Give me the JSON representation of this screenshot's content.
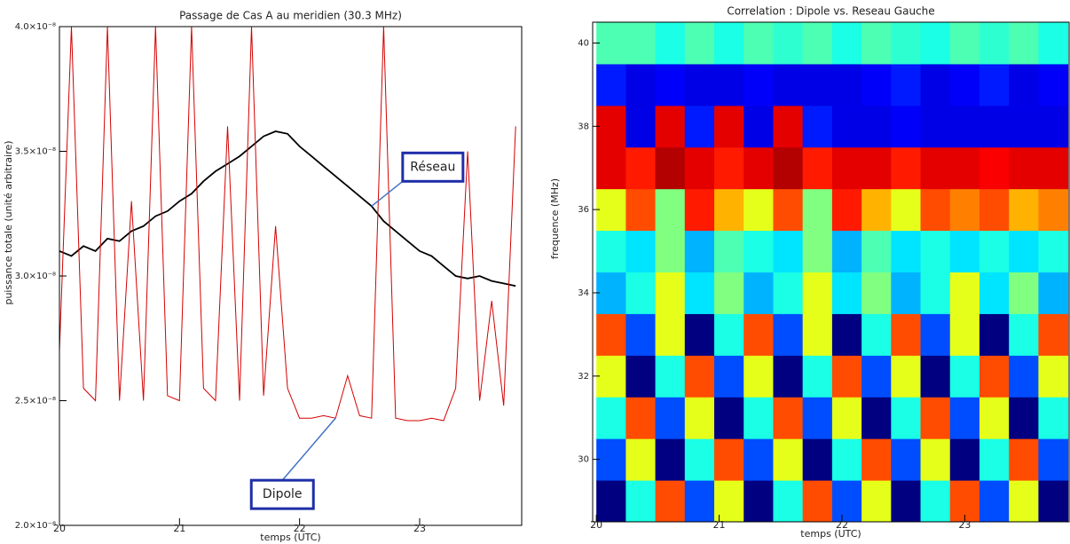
{
  "chart_data": [
    {
      "type": "line",
      "title": "Passage de Cas A au meridien (30.3 MHz)",
      "x_label": "temps (UTC)",
      "y_label": "puissance totale (unité arbitraire)",
      "legend": "callout",
      "x": [
        20.0,
        20.1,
        20.2,
        20.3,
        20.4,
        20.5,
        20.6,
        20.7,
        20.8,
        20.9,
        21.0,
        21.1,
        21.2,
        21.3,
        21.4,
        21.5,
        21.6,
        21.7,
        21.8,
        21.9,
        22.0,
        22.1,
        22.2,
        22.3,
        22.4,
        22.5,
        22.6,
        22.7,
        22.8,
        22.9,
        23.0,
        23.1,
        23.2,
        23.3,
        23.4,
        23.5,
        23.6,
        23.7,
        23.8
      ],
      "series": [
        {
          "name": "Réseau",
          "color": "#000000",
          "values": [
            3.1e-08,
            3.08e-08,
            3.12e-08,
            3.1e-08,
            3.15e-08,
            3.14e-08,
            3.18e-08,
            3.2e-08,
            3.24e-08,
            3.26e-08,
            3.3e-08,
            3.33e-08,
            3.38e-08,
            3.42e-08,
            3.45e-08,
            3.48e-08,
            3.52e-08,
            3.56e-08,
            3.58e-08,
            3.57e-08,
            3.52e-08,
            3.48e-08,
            3.44e-08,
            3.4e-08,
            3.36e-08,
            3.32e-08,
            3.28e-08,
            3.22e-08,
            3.18e-08,
            3.14e-08,
            3.1e-08,
            3.08e-08,
            3.04e-08,
            3e-08,
            2.99e-08,
            3e-08,
            2.98e-08,
            2.97e-08,
            2.96e-08
          ]
        },
        {
          "name": "Dipole",
          "color": "#d40000",
          "values": [
            2.7e-08,
            4e-08,
            2.55e-08,
            2.5e-08,
            4e-08,
            2.5e-08,
            3.3e-08,
            2.5e-08,
            4e-08,
            2.52e-08,
            2.5e-08,
            4e-08,
            2.55e-08,
            2.5e-08,
            3.6e-08,
            2.5e-08,
            4e-08,
            2.52e-08,
            3.2e-08,
            2.55e-08,
            2.43e-08,
            2.43e-08,
            2.44e-08,
            2.43e-08,
            2.6e-08,
            2.44e-08,
            2.43e-08,
            4e-08,
            2.43e-08,
            2.42e-08,
            2.42e-08,
            2.43e-08,
            2.42e-08,
            2.55e-08,
            3.5e-08,
            2.5e-08,
            2.9e-08,
            2.48e-08,
            3.6e-08
          ]
        }
      ],
      "xlim": [
        20,
        23.85
      ],
      "xticks": [
        20,
        21,
        22,
        23
      ],
      "ylim": [
        2e-08,
        4e-08
      ],
      "yticks": [
        {
          "value": 2e-08,
          "label": "2.0×10⁻⁸"
        },
        {
          "value": 2.5e-08,
          "label": "2.5×10⁻⁸"
        },
        {
          "value": 3e-08,
          "label": "3.0×10⁻⁸"
        },
        {
          "value": 3.5e-08,
          "label": "3.5×10⁻⁸"
        },
        {
          "value": 4e-08,
          "label": "4.0×10⁻⁸"
        }
      ]
    },
    {
      "type": "heatmap",
      "title": "Correlation : Dipole vs. Reseau Gauche",
      "x_label": "temps (UTC)",
      "y_label": "frequence (MHz)",
      "colormap": "jet",
      "x": [
        20.12,
        20.36,
        20.6,
        20.84,
        21.08,
        21.32,
        21.56,
        21.8,
        22.04,
        22.28,
        22.52,
        22.76,
        23.0,
        23.24,
        23.48,
        23.72
      ],
      "y": [
        29,
        30,
        31,
        32,
        33,
        34,
        35,
        36,
        37,
        38,
        39,
        40
      ],
      "values": [
        [
          0,
          0.4,
          0.8,
          0.2,
          0.6,
          0,
          0.4,
          0.8,
          0.2,
          0.6,
          0,
          0.4,
          0.8,
          0.2,
          0.6,
          0
        ],
        [
          0.2,
          0.6,
          0,
          0.4,
          0.8,
          0.2,
          0.6,
          0,
          0.4,
          0.8,
          0.2,
          0.6,
          0,
          0.4,
          0.8,
          0.2
        ],
        [
          0.4,
          0.8,
          0.2,
          0.6,
          0,
          0.4,
          0.8,
          0.2,
          0.6,
          0,
          0.4,
          0.8,
          0.2,
          0.6,
          0,
          0.4
        ],
        [
          0.6,
          0,
          0.4,
          0.8,
          0.2,
          0.6,
          0,
          0.4,
          0.8,
          0.2,
          0.6,
          0,
          0.4,
          0.8,
          0.2,
          0.6
        ],
        [
          0.8,
          0.2,
          0.6,
          0,
          0.4,
          0.8,
          0.2,
          0.6,
          0,
          0.4,
          0.8,
          0.2,
          0.6,
          0,
          0.4,
          0.8
        ],
        [
          0.3,
          0.4,
          0.6,
          0.35,
          0.5,
          0.3,
          0.4,
          0.6,
          0.35,
          0.5,
          0.3,
          0.4,
          0.6,
          0.35,
          0.5,
          0.3
        ],
        [
          0.4,
          0.35,
          0.5,
          0.3,
          0.45,
          0.4,
          0.35,
          0.5,
          0.3,
          0.45,
          0.35,
          0.4,
          0.35,
          0.4,
          0.35,
          0.4
        ],
        [
          0.6,
          0.8,
          0.5,
          0.85,
          0.7,
          0.6,
          0.8,
          0.5,
          0.85,
          0.7,
          0.6,
          0.8,
          0.75,
          0.8,
          0.7,
          0.75
        ],
        [
          0.9,
          0.85,
          0.95,
          0.9,
          0.85,
          0.9,
          0.95,
          0.85,
          0.9,
          0.9,
          0.85,
          0.9,
          0.9,
          0.88,
          0.9,
          0.9
        ],
        [
          0.9,
          0.1,
          0.9,
          0.15,
          0.9,
          0.1,
          0.9,
          0.15,
          0.1,
          0.1,
          0.12,
          0.1,
          0.1,
          0.1,
          0.1,
          0.1
        ],
        [
          0.15,
          0.1,
          0.12,
          0.1,
          0.1,
          0.12,
          0.1,
          0.1,
          0.1,
          0.12,
          0.15,
          0.1,
          0.12,
          0.15,
          0.1,
          0.12
        ],
        [
          0.45,
          0.45,
          0.4,
          0.45,
          0.4,
          0.45,
          0.42,
          0.45,
          0.4,
          0.45,
          0.42,
          0.4,
          0.45,
          0.42,
          0.45,
          0.4
        ]
      ],
      "xlim": [
        19.97,
        23.85
      ],
      "xticks": [
        20,
        21,
        22,
        23
      ],
      "ylim": [
        28.5,
        40.5
      ],
      "yticks": [
        30,
        32,
        34,
        36,
        38,
        40
      ]
    }
  ]
}
